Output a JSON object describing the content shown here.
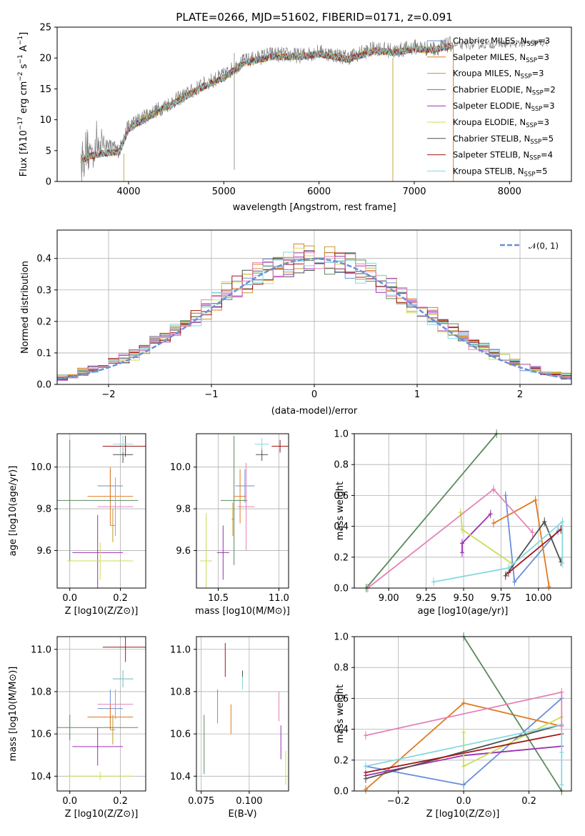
{
  "figure": {
    "title": "PLATE=0266, MJD=51602, FIBERID=0171, z=0.091"
  },
  "colors": [
    "#6a8fdb",
    "#e07b22",
    "#bf9a2a",
    "#5a8a5f",
    "#9b30b3",
    "#cddc55",
    "#505050",
    "#a01818",
    "#86d8e0",
    "#e582b6"
  ],
  "chart_data": [
    {
      "type": "line",
      "name": "spectrum",
      "xlabel": "wavelength [Angstrom, rest frame]",
      "ylabel": "Flux [f_λ 10^-17 erg cm^-2 s^-1 A^-1]",
      "xlim": [
        3250,
        8650
      ],
      "ylim": [
        0,
        25
      ],
      "xticks": [
        4000,
        5000,
        6000,
        7000,
        8000
      ],
      "yticks": [
        0,
        5,
        10,
        15,
        20,
        25
      ],
      "grid": false,
      "legend_position": "right",
      "series": [
        {
          "name": "Chabrier MILES, N_SSP=3"
        },
        {
          "name": "Salpeter MILES, N_SSP=3"
        },
        {
          "name": "Kroupa MILES, N_SSP=3"
        },
        {
          "name": "Chabrier ELODIE, N_SSP=2"
        },
        {
          "name": "Salpeter ELODIE, N_SSP=3"
        },
        {
          "name": "Kroupa ELODIE, N_SSP=3"
        },
        {
          "name": "Chabrier STELIB, N_SSP=5"
        },
        {
          "name": "Salpeter STELIB, N_SSP=4"
        },
        {
          "name": "Kroupa STELIB, N_SSP=5"
        }
      ],
      "data_envelope": {
        "x": [
          3500,
          3700,
          3900,
          4000,
          4200,
          4500,
          4800,
          5000,
          5200,
          5500,
          5800,
          6000,
          6300,
          6600,
          6800,
          7000,
          7200,
          7400
        ],
        "y": [
          3.5,
          6.5,
          5.0,
          9.0,
          10.8,
          13.2,
          15.8,
          17.2,
          19.4,
          20.6,
          20.4,
          21.0,
          20.1,
          21.6,
          21.1,
          21.8,
          21.5,
          22.3
        ]
      },
      "model_envelope": {
        "x": [
          3500,
          3700,
          3900,
          4000,
          4200,
          4500,
          4800,
          5000,
          5200,
          5500,
          5800,
          6000,
          6300,
          6600,
          6800,
          7000,
          7200,
          7400
        ],
        "y": [
          3.6,
          4.5,
          4.8,
          8.5,
          10.4,
          12.9,
          15.5,
          16.8,
          19.2,
          20.2,
          20.2,
          20.7,
          19.8,
          21.2,
          20.9,
          21.5,
          21.3,
          22.0
        ]
      },
      "extra_data_range": {
        "x": [
          7400,
          8400
        ],
        "y": [
          22.0,
          22.5
        ]
      }
    },
    {
      "type": "histogram",
      "name": "residuals",
      "xlabel": "(data-model)/error",
      "ylabel": "Normed distribution",
      "xlim": [
        -2.5,
        2.5
      ],
      "ylim": [
        0,
        0.49
      ],
      "xticks": [
        -2,
        -1,
        0,
        1,
        2
      ],
      "yticks": [
        0.0,
        0.1,
        0.2,
        0.3,
        0.4
      ],
      "grid": true,
      "legend_position": "top-right",
      "legend": "𝒩(0, 1)",
      "bin_edges_start": -2.5,
      "bin_width": 0.1
    },
    {
      "type": "scatter",
      "name": "age-vs-metallicity",
      "xlabel": "Z [log10(Z/Z⊙)]",
      "ylabel": "age [log10(age/yr)]",
      "xlim": [
        -0.05,
        0.3
      ],
      "ylim": [
        9.42,
        10.16
      ],
      "xticks": [
        0.0,
        0.2
      ],
      "yticks": [
        9.6,
        9.8,
        10.0
      ],
      "points": [
        {
          "c": 0,
          "x": 0.16,
          "y": 9.91,
          "ex": 0.05,
          "ey": 0.08
        },
        {
          "c": 1,
          "x": 0.16,
          "y": 9.86,
          "ex": 0.09,
          "ey": 0.14
        },
        {
          "c": 2,
          "x": 0.17,
          "y": 9.72,
          "ex": 0.01,
          "ey": 0.08
        },
        {
          "c": 3,
          "x": 0.0,
          "y": 9.84,
          "ex": 0.27,
          "ey": 0.29
        },
        {
          "c": 4,
          "x": 0.11,
          "y": 9.59,
          "ex": 0.1,
          "ey": 0.18
        },
        {
          "c": 5,
          "x": 0.12,
          "y": 9.55,
          "ex": 0.13,
          "ey": 0.09
        },
        {
          "c": 6,
          "x": 0.21,
          "y": 10.06,
          "ex": 0.04,
          "ey": 0.04
        },
        {
          "c": 7,
          "x": 0.22,
          "y": 10.1,
          "ex": 0.09,
          "ey": 0.05
        },
        {
          "c": 8,
          "x": 0.21,
          "y": 10.11,
          "ex": 0.04,
          "ey": 0.04
        },
        {
          "c": 9,
          "x": 0.18,
          "y": 9.81,
          "ex": 0.07,
          "ey": 0.14
        }
      ]
    },
    {
      "type": "scatter",
      "name": "age-vs-mass",
      "xlabel": "mass [log10(M/M⊙)]",
      "ylabel": "",
      "xlim": [
        10.32,
        11.08
      ],
      "ylim": [
        9.42,
        10.16
      ],
      "xticks": [
        10.5,
        11.0
      ],
      "yticks": [
        9.6,
        9.8,
        10.0
      ],
      "points": [
        {
          "c": 0,
          "x": 10.72,
          "y": 9.91,
          "ex": 0.08,
          "ey": 0.08
        },
        {
          "c": 1,
          "x": 10.68,
          "y": 9.86,
          "ex": 0.05,
          "ey": 0.13
        },
        {
          "c": 2,
          "x": 10.62,
          "y": 9.75,
          "ex": 0.01,
          "ey": 0.08
        },
        {
          "c": 3,
          "x": 10.63,
          "y": 9.84,
          "ex": 0.11,
          "ey": 0.31
        },
        {
          "c": 4,
          "x": 10.54,
          "y": 9.59,
          "ex": 0.05,
          "ey": 0.13
        },
        {
          "c": 5,
          "x": 10.4,
          "y": 9.55,
          "ex": 0.05,
          "ey": 0.23
        },
        {
          "c": 6,
          "x": 10.86,
          "y": 10.06,
          "ex": 0.05,
          "ey": 0.03
        },
        {
          "c": 7,
          "x": 11.01,
          "y": 10.1,
          "ex": 0.07,
          "ey": 0.03
        },
        {
          "c": 8,
          "x": 10.86,
          "y": 10.11,
          "ex": 0.06,
          "ey": 0.03
        },
        {
          "c": 9,
          "x": 10.73,
          "y": 9.81,
          "ex": 0.07,
          "ey": 0.21
        }
      ]
    },
    {
      "type": "line",
      "name": "mass-weight-vs-age",
      "xlabel": "age [log10(age/yr)]",
      "ylabel": "mass weight",
      "xlim": [
        8.77,
        10.22
      ],
      "ylim": [
        0,
        1.0
      ],
      "xticks": [
        9.0,
        9.25,
        9.5,
        9.75,
        10.0
      ],
      "yticks": [
        0.0,
        0.2,
        0.4,
        0.6,
        0.8,
        1.0
      ],
      "grid": true,
      "series": [
        {
          "c": 0,
          "x": [
            9.78,
            9.84,
            10.13
          ],
          "y": [
            0.6,
            0.04,
            0.37
          ]
        },
        {
          "c": 1,
          "x": [
            9.7,
            9.98,
            10.07
          ],
          "y": [
            0.42,
            0.57,
            0.01
          ]
        },
        {
          "c": 3,
          "x": [
            8.85,
            9.72
          ],
          "y": [
            0.0,
            1.0
          ]
        },
        {
          "c": 4,
          "x": [
            9.49,
            9.49,
            9.68
          ],
          "y": [
            0.23,
            0.29,
            0.48
          ]
        },
        {
          "c": 5,
          "x": [
            9.48,
            9.49,
            9.82
          ],
          "y": [
            0.49,
            0.38,
            0.16
          ]
        },
        {
          "c": 6,
          "x": [
            9.78,
            10.04,
            10.15
          ],
          "y": [
            0.08,
            0.43,
            0.17
          ]
        },
        {
          "c": 7,
          "x": [
            9.8,
            10.15
          ],
          "y": [
            0.1,
            0.38
          ]
        },
        {
          "c": 8,
          "x": [
            9.3,
            9.8,
            10.16,
            10.16
          ],
          "y": [
            0.04,
            0.13,
            0.43,
            0.16
          ]
        },
        {
          "c": 9,
          "x": [
            8.86,
            9.7,
            9.96
          ],
          "y": [
            0.0,
            0.64,
            0.36
          ]
        }
      ]
    },
    {
      "type": "scatter",
      "name": "mass-vs-metallicity",
      "xlabel": "Z [log10(Z/Z⊙)]",
      "ylabel": "mass [log10(M/M⊙)]",
      "xlim": [
        -0.05,
        0.3
      ],
      "ylim": [
        10.33,
        11.06
      ],
      "xticks": [
        0.0,
        0.2
      ],
      "yticks": [
        10.4,
        10.6,
        10.8,
        11.0
      ],
      "points": [
        {
          "c": 0,
          "x": 0.16,
          "y": 10.72,
          "ex": 0.05,
          "ey": 0.09
        },
        {
          "c": 1,
          "x": 0.16,
          "y": 10.68,
          "ex": 0.09,
          "ey": 0.06
        },
        {
          "c": 2,
          "x": 0.17,
          "y": 10.62,
          "ex": 0.01,
          "ey": 0.07
        },
        {
          "c": 3,
          "x": 0.0,
          "y": 10.63,
          "ex": 0.27,
          "ey": 0.06
        },
        {
          "c": 4,
          "x": 0.11,
          "y": 10.54,
          "ex": 0.1,
          "ey": 0.09
        },
        {
          "c": 5,
          "x": 0.12,
          "y": 10.4,
          "ex": 0.13,
          "ey": 0.02
        },
        {
          "c": 6,
          "x": 0.21,
          "y": 10.86,
          "ex": 0.04,
          "ey": 0.04
        },
        {
          "c": 7,
          "x": 0.22,
          "y": 11.01,
          "ex": 0.09,
          "ey": 0.07
        },
        {
          "c": 8,
          "x": 0.21,
          "y": 10.86,
          "ex": 0.04,
          "ey": 0.04
        },
        {
          "c": 9,
          "x": 0.18,
          "y": 10.74,
          "ex": 0.07,
          "ey": 0.07
        }
      ]
    },
    {
      "type": "scatter",
      "name": "mass-vs-extinction",
      "xlabel": "E(B-V)",
      "ylabel": "",
      "xlim": [
        0.0725,
        0.1205
      ],
      "ylim": [
        10.33,
        11.06
      ],
      "xticks": [
        0.075,
        0.1
      ],
      "yticks": [
        10.4,
        10.6,
        10.8,
        11.0
      ],
      "points": [
        {
          "c": 0,
          "x": 0.0835,
          "y": 10.73,
          "ex": 0.0,
          "ey": 0.08
        },
        {
          "c": 1,
          "x": 0.0905,
          "y": 10.67,
          "ex": 0.0,
          "ey": 0.07
        },
        {
          "c": 2,
          "x": 0.0725,
          "y": 10.38,
          "ex": 0.0,
          "ey": 0.03
        },
        {
          "c": 3,
          "x": 0.0765,
          "y": 10.55,
          "ex": 0.0,
          "ey": 0.14
        },
        {
          "c": 4,
          "x": 0.1165,
          "y": 10.56,
          "ex": 0.0,
          "ey": 0.08
        },
        {
          "c": 5,
          "x": 0.119,
          "y": 10.44,
          "ex": 0.0,
          "ey": 0.08
        },
        {
          "c": 6,
          "x": 0.0965,
          "y": 10.86,
          "ex": 0.0,
          "ey": 0.04
        },
        {
          "c": 7,
          "x": 0.0875,
          "y": 10.95,
          "ex": 0.0,
          "ey": 0.08
        },
        {
          "c": 8,
          "x": 0.0965,
          "y": 10.84,
          "ex": 0.0,
          "ey": 0.03
        },
        {
          "c": 9,
          "x": 0.1155,
          "y": 10.73,
          "ex": 0.0,
          "ey": 0.07
        }
      ]
    },
    {
      "type": "line",
      "name": "mass-weight-vs-metallicity",
      "xlabel": "Z [log10(Z/Z⊙)]",
      "ylabel": "mass weight",
      "xlim": [
        -0.335,
        0.33
      ],
      "ylim": [
        0,
        1.0
      ],
      "xticks": [
        -0.2,
        0.0,
        0.2
      ],
      "yticks": [
        0.0,
        0.2,
        0.4,
        0.6,
        0.8,
        1.0
      ],
      "grid": true,
      "series": [
        {
          "c": 0,
          "x": [
            -0.3,
            0.0,
            0.3
          ],
          "y": [
            0.16,
            0.04,
            0.6
          ]
        },
        {
          "c": 1,
          "x": [
            -0.3,
            0.0,
            0.3
          ],
          "y": [
            0.01,
            0.57,
            0.42
          ]
        },
        {
          "c": 3,
          "x": [
            0.0,
            0.3
          ],
          "y": [
            1.0,
            0.0
          ]
        },
        {
          "c": 4,
          "x": [
            -0.3,
            0.0,
            0.3
          ],
          "y": [
            0.1,
            0.23,
            0.29
          ]
        },
        {
          "c": 5,
          "x": [
            0.0,
            0.0,
            0.3
          ],
          "y": [
            0.38,
            0.16,
            0.48
          ]
        },
        {
          "c": 6,
          "x": [
            -0.3,
            0.3
          ],
          "y": [
            0.08,
            0.43
          ]
        },
        {
          "c": 7,
          "x": [
            -0.3,
            0.3
          ],
          "y": [
            0.12,
            0.37
          ]
        },
        {
          "c": 8,
          "x": [
            -0.3,
            0.3,
            0.3,
            0.3
          ],
          "y": [
            0.16,
            0.43,
            0.25,
            0.04
          ]
        },
        {
          "c": 9,
          "x": [
            -0.3,
            0.3,
            0.3
          ],
          "y": [
            0.36,
            0.64,
            0.42
          ]
        }
      ]
    }
  ]
}
